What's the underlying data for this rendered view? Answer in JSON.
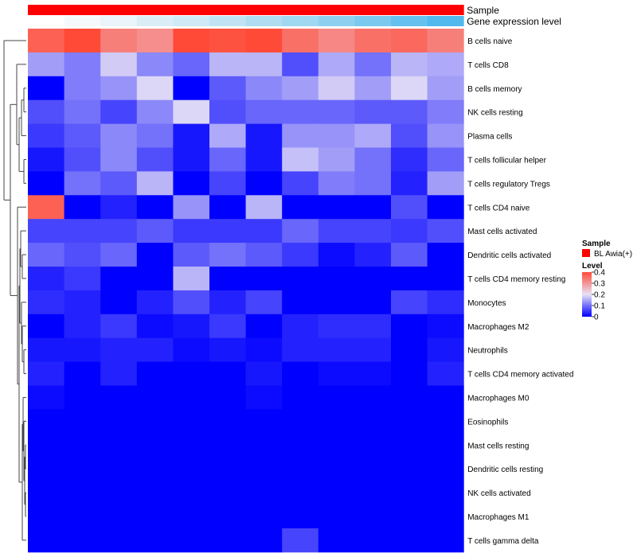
{
  "chart_data": {
    "type": "heatmap",
    "annotation_tracks": [
      {
        "label": "Sample",
        "colors": [
          "#ff0000",
          "#ff0000",
          "#ff0000",
          "#ff0000",
          "#ff0000",
          "#ff0000",
          "#ff0000",
          "#ff0000",
          "#ff0000",
          "#ff0000",
          "#ff0000",
          "#ff0000"
        ]
      },
      {
        "label": "Gene expression level",
        "colors": [
          "#ffffff",
          "#f6f9fc",
          "#eaf4fa",
          "#dbeef8",
          "#cfe9f6",
          "#c0e4f4",
          "#b0ddf2",
          "#a0d7f1",
          "#8ed0f0",
          "#7cc9ef",
          "#66c1ee",
          "#52b9ee"
        ]
      }
    ],
    "rows": [
      "B cells naive",
      "T cells CD8",
      "B cells memory",
      "NK cells resting",
      "Plasma cells",
      "T cells follicular helper",
      "T cells regulatory  Tregs",
      "T cells CD4 naive",
      "Mast cells activated",
      "Dendritic cells activated",
      "T cells CD4 memory resting",
      "Monocytes",
      "Macrophages M2",
      "Neutrophils",
      "T cells CD4 memory activated",
      "Macrophages M0",
      "Eosinophils",
      "Mast cells resting",
      "Dendritic cells resting",
      "NK cells activated",
      "Macrophages M1",
      "T cells gamma delta"
    ],
    "columns": 12,
    "values": [
      [
        0.37,
        0.4,
        0.33,
        0.31,
        0.4,
        0.39,
        0.4,
        0.35,
        0.32,
        0.35,
        0.36,
        0.33
      ],
      [
        0.14,
        0.11,
        0.18,
        0.12,
        0.09,
        0.16,
        0.16,
        0.07,
        0.15,
        0.1,
        0.16,
        0.15
      ],
      [
        0.0,
        0.11,
        0.13,
        0.19,
        0.0,
        0.08,
        0.12,
        0.14,
        0.18,
        0.14,
        0.19,
        0.14
      ],
      [
        0.07,
        0.1,
        0.06,
        0.12,
        0.19,
        0.07,
        0.09,
        0.09,
        0.09,
        0.08,
        0.08,
        0.11
      ],
      [
        0.05,
        0.08,
        0.12,
        0.1,
        0.02,
        0.15,
        0.02,
        0.13,
        0.13,
        0.15,
        0.07,
        0.13
      ],
      [
        0.02,
        0.07,
        0.12,
        0.07,
        0.02,
        0.09,
        0.02,
        0.17,
        0.14,
        0.1,
        0.04,
        0.09
      ],
      [
        0.0,
        0.1,
        0.08,
        0.16,
        0.0,
        0.06,
        0.0,
        0.06,
        0.11,
        0.1,
        0.03,
        0.14
      ],
      [
        0.37,
        0.0,
        0.03,
        0.0,
        0.13,
        0.0,
        0.16,
        0.0,
        0.0,
        0.0,
        0.07,
        0.0
      ],
      [
        0.06,
        0.06,
        0.06,
        0.08,
        0.05,
        0.05,
        0.05,
        0.09,
        0.06,
        0.06,
        0.05,
        0.07
      ],
      [
        0.09,
        0.07,
        0.09,
        0.0,
        0.08,
        0.1,
        0.08,
        0.05,
        0.01,
        0.03,
        0.08,
        0.0
      ],
      [
        0.03,
        0.05,
        0.0,
        0.0,
        0.16,
        0.0,
        0.0,
        0.0,
        0.0,
        0.0,
        0.0,
        0.0
      ],
      [
        0.04,
        0.03,
        0.0,
        0.03,
        0.07,
        0.03,
        0.06,
        0.0,
        0.0,
        0.0,
        0.06,
        0.04
      ],
      [
        0.0,
        0.03,
        0.05,
        0.01,
        0.02,
        0.05,
        0.0,
        0.03,
        0.04,
        0.04,
        0.0,
        0.01
      ],
      [
        0.02,
        0.02,
        0.03,
        0.03,
        0.01,
        0.02,
        0.01,
        0.03,
        0.03,
        0.03,
        0.0,
        0.02
      ],
      [
        0.03,
        0.0,
        0.03,
        0.0,
        0.0,
        0.0,
        0.02,
        0.0,
        0.01,
        0.01,
        0.0,
        0.03
      ],
      [
        0.01,
        0.0,
        0.0,
        0.0,
        0.0,
        0.0,
        0.01,
        0.0,
        0.0,
        0.0,
        0.0,
        0.0
      ],
      [
        0.0,
        0.0,
        0.0,
        0.0,
        0.0,
        0.0,
        0.0,
        0.0,
        0.0,
        0.0,
        0.0,
        0.0
      ],
      [
        0.0,
        0.0,
        0.0,
        0.0,
        0.0,
        0.0,
        0.0,
        0.0,
        0.0,
        0.0,
        0.0,
        0.0
      ],
      [
        0.0,
        0.0,
        0.0,
        0.0,
        0.0,
        0.0,
        0.0,
        0.0,
        0.0,
        0.0,
        0.0,
        0.0
      ],
      [
        0.0,
        0.0,
        0.0,
        0.0,
        0.0,
        0.0,
        0.0,
        0.0,
        0.0,
        0.0,
        0.0,
        0.0
      ],
      [
        0.0,
        0.0,
        0.0,
        0.0,
        0.0,
        0.0,
        0.0,
        0.0,
        0.0,
        0.0,
        0.0,
        0.0
      ],
      [
        0.0,
        0.0,
        0.0,
        0.0,
        0.0,
        0.0,
        0.0,
        0.06,
        0.0,
        0.0,
        0.0,
        0.0
      ]
    ],
    "color_scale": {
      "min": 0,
      "max": 0.4,
      "stops": [
        [
          0,
          "#0000ff"
        ],
        [
          0.2,
          "#e8e2f5"
        ],
        [
          0.4,
          "#ff4a38"
        ]
      ]
    },
    "legend": {
      "placement": "right",
      "sample_title": "Sample",
      "sample_entry": {
        "label": "BL Awia(+)",
        "color": "#ff0000"
      },
      "level_title": "Level",
      "ticks": [
        "0.4",
        "0.3",
        "0.2",
        "0.1",
        "0"
      ],
      "tick_values": [
        0.4,
        0.3,
        0.2,
        0.1,
        0
      ]
    },
    "dendrogram": {
      "side": "left"
    }
  }
}
